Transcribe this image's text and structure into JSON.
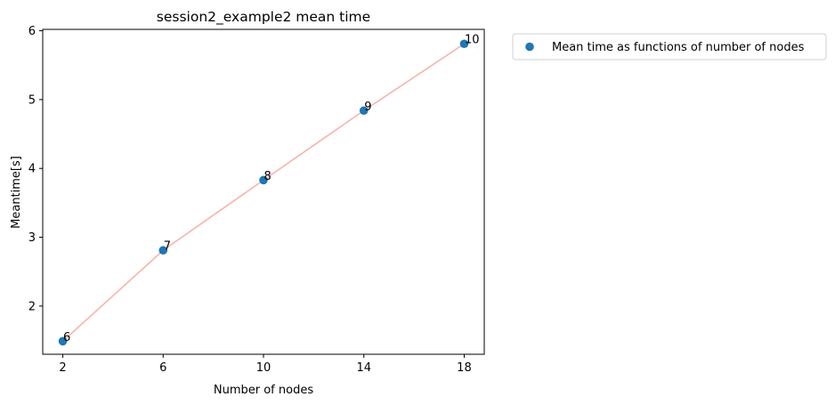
{
  "chart_data": {
    "type": "scatter",
    "title": "session2_example2 mean time",
    "xlabel": "Number of nodes",
    "ylabel": "Meantime[s]",
    "xlim": [
      1.2,
      18.8
    ],
    "ylim": [
      1.3,
      6.02
    ],
    "xticks": [
      2,
      6,
      10,
      14,
      18
    ],
    "xtick_labels": [
      "2",
      "6",
      "10",
      "14",
      "18"
    ],
    "yticks": [
      2,
      3,
      4,
      5,
      6
    ],
    "ytick_labels": [
      "2",
      "3",
      "4",
      "5",
      "6"
    ],
    "grid": false,
    "legend_position": "outside-top-right",
    "series": [
      {
        "name": "Mean time as functions of number of nodes",
        "x": [
          2,
          6,
          10,
          14,
          18
        ],
        "y": [
          1.49,
          2.81,
          3.83,
          4.84,
          5.81
        ],
        "point_labels": [
          "6",
          "7",
          "8",
          "9",
          "10"
        ],
        "marker_color": "#1f77b4",
        "line_color": "#f7b3ac"
      }
    ]
  }
}
